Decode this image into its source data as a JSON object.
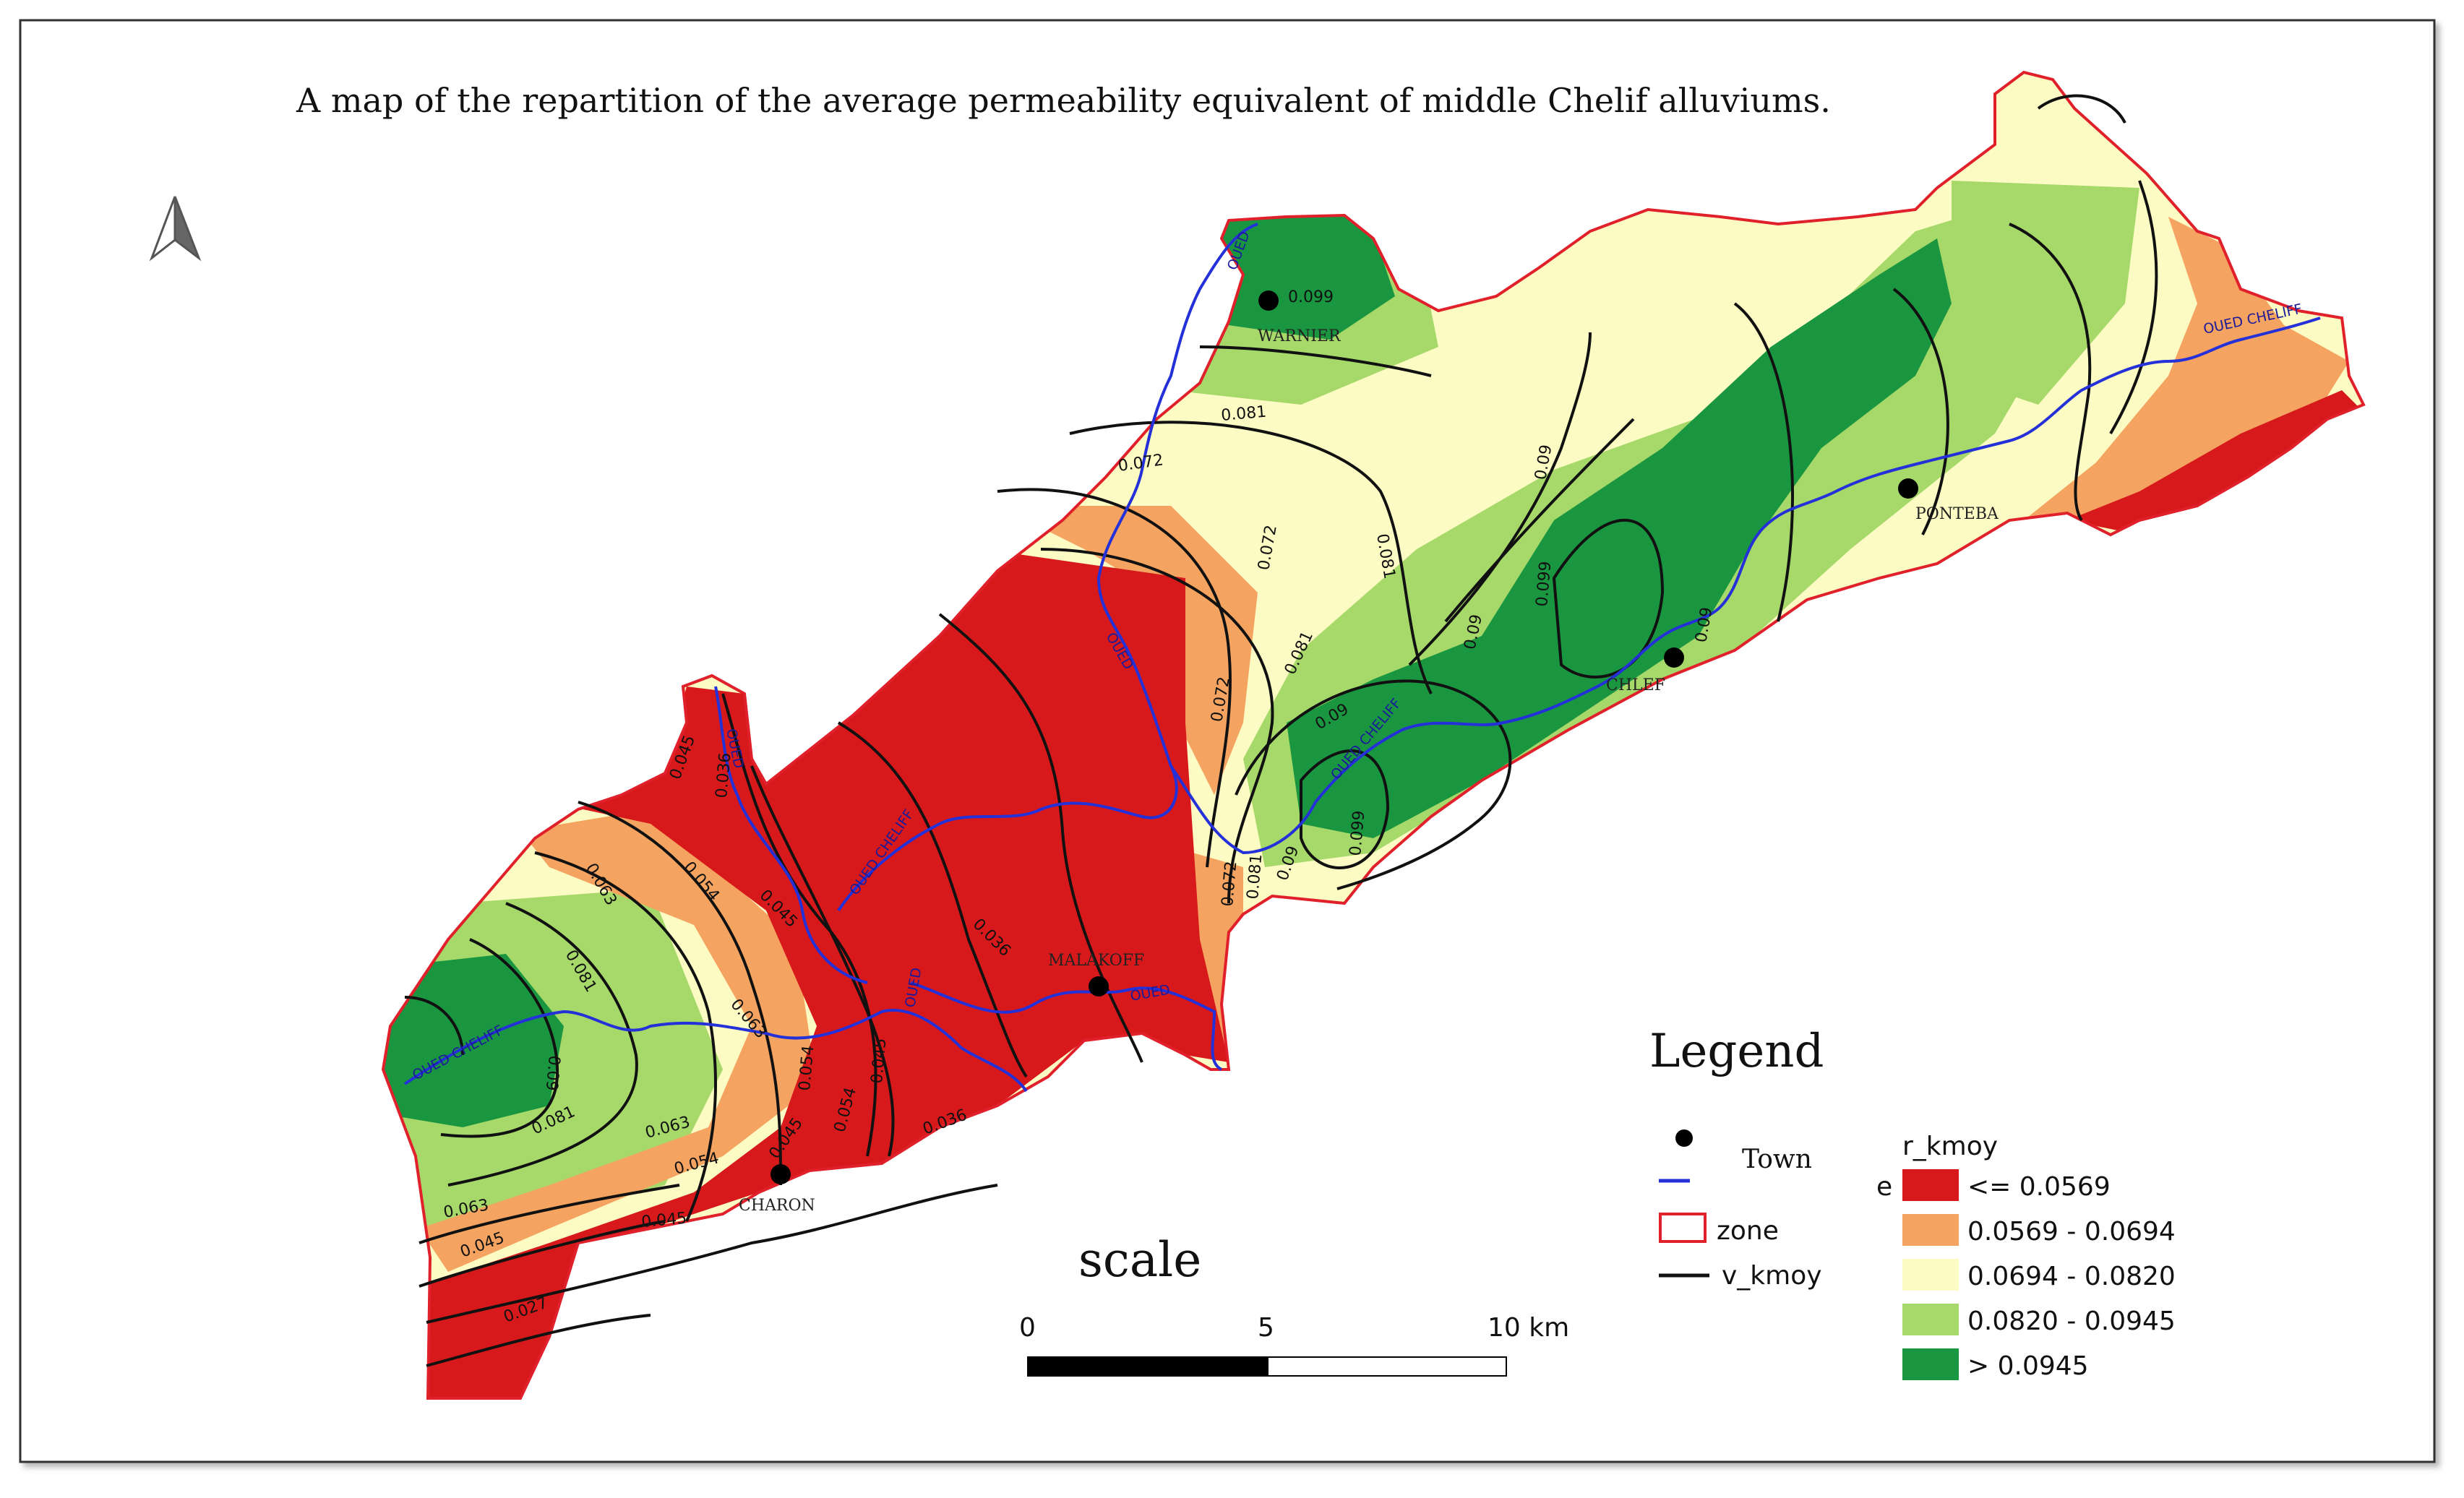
{
  "title": "A map of the repartition of the average permeability equivalent of middle Chelif alluviums.",
  "legend": {
    "title": "Legend",
    "items": [
      {
        "label": "Town"
      },
      {
        "label": "zone"
      },
      {
        "label": "v_kmoy"
      }
    ],
    "river_code": "e",
    "class_title": "r_kmoy",
    "classes": [
      {
        "label": "<= 0.0569",
        "color": "#d7191c"
      },
      {
        "label": "0.0569 - 0.0694",
        "color": "#f4a460"
      },
      {
        "label": "0.0694 - 0.0820",
        "color": "#fdfbc4"
      },
      {
        "label": "0.0820 - 0.0945",
        "color": "#a6d96a"
      },
      {
        "label": "> 0.0945",
        "color": "#1a9641"
      }
    ]
  },
  "scale": {
    "title": "scale",
    "ticks": [
      "0",
      "5",
      "10 km"
    ]
  },
  "towns": [
    {
      "name": "WARNIER"
    },
    {
      "name": "PONTEBA"
    },
    {
      "name": "CHLEF"
    },
    {
      "name": "MALAKOFF"
    },
    {
      "name": "CHARON"
    }
  ],
  "river_labels": [
    "OUED CHELIFF",
    "OUED CHELIFF",
    "OUED CHELIFF",
    "OUED CHELIFF",
    "OUED",
    "OUED",
    "OUED",
    "OUED",
    "OUED"
  ],
  "contour_labels": [
    "0.099",
    "0.081",
    "0.072",
    "0.081",
    "0.09",
    "0.072",
    "0.081",
    "0.072",
    "0.09",
    "0.099",
    "0.09",
    "0.099",
    "0.09",
    "0.081",
    "0.072",
    "0.09",
    "0.036",
    "0.045",
    "0.036",
    "0.045",
    "0.054",
    "0.063",
    "0.081",
    "0.09",
    "0.081",
    "0.063",
    "0.054",
    "0.045",
    "0.063",
    "0.054",
    "0.045",
    "0.054",
    "0.045",
    "0.036",
    "0.027",
    "0.045",
    "0.063"
  ],
  "colors": {
    "zone_border": "#e0202a",
    "river": "#2430d8",
    "contour": "#111111"
  }
}
